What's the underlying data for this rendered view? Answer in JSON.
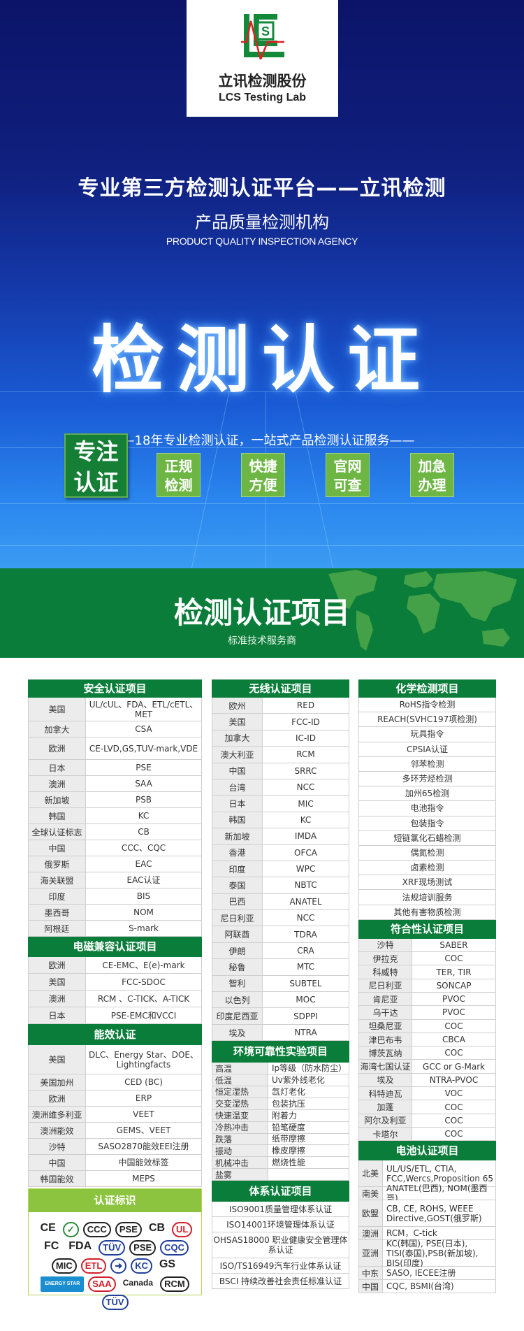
{
  "header": {
    "logo_cn": "立讯检测股份",
    "logo_en": "LCS Testing Lab"
  },
  "hero": {
    "headline": "专业第三方检测认证平台——立讯检测",
    "subtitle": "产品质量检测机构",
    "subtitle_en": "PRODUCT QUALITY INSPECTION AGENCY",
    "big_title": "检测认证",
    "slogan": "——18年专业检测认证，一站式产品检测认证服务——",
    "focus_badge": [
      "专注",
      "认证"
    ],
    "badges": [
      [
        "正规",
        "检测"
      ],
      [
        "快捷",
        "方便"
      ],
      [
        "官网",
        "可查"
      ],
      [
        "加急",
        "办理"
      ]
    ],
    "colors": {
      "dark_green": "#0b7d3a",
      "light_green": "#6db644",
      "blue": "#1438a8"
    }
  },
  "banner": {
    "title": "检测认证项目",
    "subtitle": "标准技术服务商"
  },
  "left": [
    {
      "title": "安全认证项目",
      "rows": [
        [
          "美国",
          "UL/cUL、FDA、ETL/cETL、MET"
        ],
        [
          "加拿大",
          "CSA"
        ],
        [
          "欧洲",
          "CE-LVD,GS,TUV-mark,VDE"
        ],
        [
          "日本",
          "PSE"
        ],
        [
          "澳洲",
          "SAA"
        ],
        [
          "新加坡",
          "PSB"
        ],
        [
          "韩国",
          "KC"
        ],
        [
          "全球认证标志",
          "CB"
        ],
        [
          "中国",
          "CCC、CQC"
        ],
        [
          "俄罗斯",
          "EAC"
        ],
        [
          "海关联盟",
          "EAC认证"
        ],
        [
          "印度",
          "BIS"
        ],
        [
          "墨西哥",
          "NOM"
        ],
        [
          "阿根廷",
          "S-mark"
        ]
      ]
    },
    {
      "title": "电磁兼容认证项目",
      "rows": [
        [
          "欧洲",
          "CE-EMC、E(e)-mark"
        ],
        [
          "美国",
          "FCC-SDOC"
        ],
        [
          "澳洲",
          "RCM 、C-TICK、A-TICK"
        ],
        [
          "日本",
          "PSE-EMC和VCCI"
        ]
      ]
    },
    {
      "title": "能效认证",
      "rows": [
        [
          "美国",
          "DLC、Energy Star、DOE、Lightingfacts"
        ],
        [
          "美国加州",
          "CED (BC)"
        ],
        [
          "欧洲",
          "ERP"
        ],
        [
          "澳洲维多利亚",
          "VEET"
        ],
        [
          "澳洲能效",
          "GEMS、VEET"
        ],
        [
          "沙特",
          "SASO2870能效EEI注册"
        ],
        [
          "中国",
          "中国能效标签"
        ],
        [
          "韩国能效",
          "MEPS"
        ]
      ]
    }
  ],
  "certification_marks": {
    "title": "认证标识",
    "logos": [
      "CE",
      "✓",
      "CCC",
      "PSE",
      "CB",
      "UL",
      "FC",
      "FDA",
      "TÜV",
      "PSE",
      "CQC",
      "MIC",
      "ETL",
      "➜",
      "KC",
      "GS",
      "ENERGY STAR",
      "SAA",
      "Canada",
      "RCM",
      "TÜV"
    ]
  },
  "middle": [
    {
      "title": "无线认证项目",
      "rows": [
        [
          "欧州",
          "RED"
        ],
        [
          "美国",
          "FCC-ID"
        ],
        [
          "加拿大",
          "IC-ID"
        ],
        [
          "澳大利亚",
          "RCM"
        ],
        [
          "中国",
          "SRRC"
        ],
        [
          "台湾",
          "NCC"
        ],
        [
          "日本",
          "MIC"
        ],
        [
          "韩国",
          "KC"
        ],
        [
          "新加坡",
          "IMDA"
        ],
        [
          "香港",
          "OFCA"
        ],
        [
          "印度",
          "WPC"
        ],
        [
          "泰国",
          "NBTC"
        ],
        [
          "巴西",
          "ANATEL"
        ],
        [
          "尼日利亚",
          "NCC"
        ],
        [
          "阿联酋",
          "TDRA"
        ],
        [
          "伊朗",
          "CRA"
        ],
        [
          "秘鲁",
          "MTC"
        ],
        [
          "智利",
          "SUBTEL"
        ],
        [
          "以色列",
          "MOC"
        ],
        [
          "印度尼西亚",
          "SDPPI"
        ],
        [
          "埃及",
          "NTRA"
        ]
      ]
    },
    {
      "title": "环境可靠性实验项目",
      "rows": [
        [
          "高温",
          "Ip等级（防水防尘）"
        ],
        [
          "低温",
          "Uv紫外线老化"
        ],
        [
          "恒定湿热",
          "氙灯老化"
        ],
        [
          "交变湿热",
          "包装抗压"
        ],
        [
          "快速温变",
          "附着力"
        ],
        [
          "冷热冲击",
          "铅笔硬度"
        ],
        [
          "跌落",
          "纸带摩擦"
        ],
        [
          "振动",
          "橡皮摩擦"
        ],
        [
          "机械冲击",
          "燃烧性能"
        ],
        [
          "盐雾",
          ""
        ]
      ]
    },
    {
      "title": "体系认证项目",
      "items": [
        "ISO9001质量管理体系认证",
        "ISO14001环境管理体系认证",
        "OHSAS18000 职业健康安全管理体系认证",
        "ISO/TS16949汽车行业体系认证",
        "BSCI 持续改善社会责任标准认证"
      ]
    }
  ],
  "right": [
    {
      "title": "化学检测项目",
      "items": [
        "RoHS指令检测",
        "REACH(SVHC197项检测)",
        "玩具指令",
        "CPSIA认证",
        "邻苯检测",
        "多环芳烃检测",
        "加州65检测",
        "电池指令",
        "包装指令",
        "短链氯化石蜡检测",
        "偶氮检测",
        "卤素检测",
        "XRF现场测试",
        "法规培训服务",
        "其他有害物质检测"
      ]
    },
    {
      "title": "符合性认证项目",
      "rows": [
        [
          "沙特",
          "SABER"
        ],
        [
          "伊拉克",
          "COC"
        ],
        [
          "科威特",
          "TER, TIR"
        ],
        [
          "尼日利亚",
          "SONCAP"
        ],
        [
          "肯尼亚",
          "PVOC"
        ],
        [
          "乌干达",
          "PVOC"
        ],
        [
          "坦桑尼亚",
          "COC"
        ],
        [
          "津巴布韦",
          "CBCA"
        ],
        [
          "博茨瓦纳",
          "COC"
        ],
        [
          "海湾七国认证",
          "GCC or G-Mark"
        ],
        [
          "埃及",
          "NTRA-PVOC"
        ],
        [
          "科特迪瓦",
          "VOC"
        ],
        [
          "加蓬",
          "COC"
        ],
        [
          "阿尔及利亚",
          "COC"
        ],
        [
          "卡塔尔",
          "COC"
        ]
      ]
    },
    {
      "title": "电池认证项目",
      "rows": [
        [
          "北美",
          "UL/US/ETL, CTIA, FCC,Wercs,Proposition 65"
        ],
        [
          "南美",
          "ANATEL(巴西), NOM(墨西哥)"
        ],
        [
          "欧盟",
          "CB, CE, ROHS, WEEE Directive,GOST(俄罗斯)"
        ],
        [
          "澳洲",
          "RCM，C-tick"
        ],
        [
          "亚洲",
          "KC(韩国), PSE(日本), TISI(泰国),PSB(新加坡), BIS(印度)"
        ],
        [
          "中东",
          "SASO, IECEE注册"
        ],
        [
          "中国",
          "CQC, BSMI(台湾)"
        ]
      ]
    }
  ]
}
